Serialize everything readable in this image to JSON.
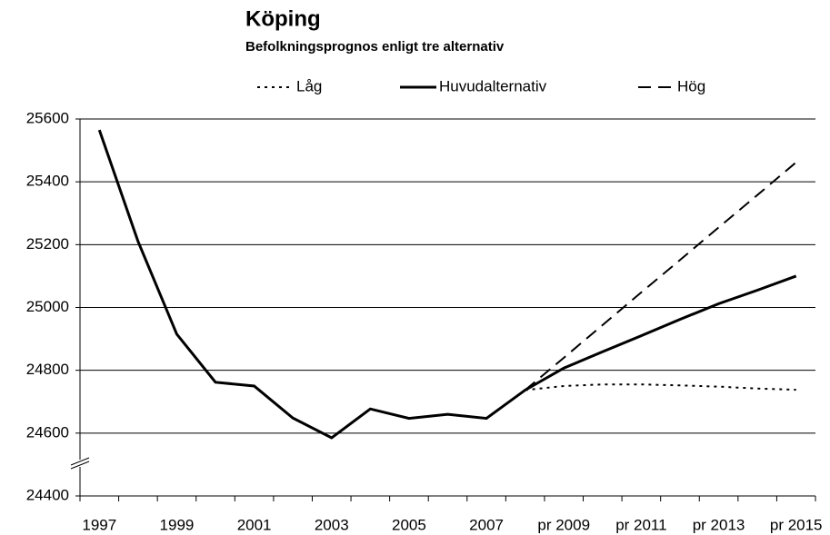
{
  "chart_data": {
    "type": "line",
    "title": "Köping",
    "subtitle": "Befolkningsprognos enligt tre alternativ",
    "categories": [
      "1997",
      null,
      "1999",
      null,
      "2001",
      null,
      "2003",
      null,
      "2005",
      null,
      "2007",
      null,
      "pr 2009",
      null,
      "pr 2011",
      null,
      "pr 2013",
      null,
      "pr 2015"
    ],
    "series": [
      {
        "name": "Låg",
        "color": "#000000",
        "dash": "dotted",
        "values": [
          null,
          null,
          null,
          null,
          null,
          null,
          null,
          null,
          null,
          null,
          null,
          24737,
          24750,
          24755,
          24755,
          24752,
          24748,
          24742,
          24738
        ]
      },
      {
        "name": "Huvudalternativ",
        "color": "#000000",
        "dash": "solid",
        "values": [
          25565,
          25210,
          24915,
          24762,
          24750,
          24648,
          24585,
          24677,
          24647,
          24660,
          24647,
          24737,
          24807,
          24859,
          24910,
          24962,
          25012,
          25055,
          25100
        ]
      },
      {
        "name": "Hög",
        "color": "#000000",
        "dash": "dashed",
        "values": [
          null,
          null,
          null,
          null,
          null,
          null,
          null,
          null,
          null,
          null,
          null,
          24737,
          24840,
          24944,
          25048,
          25151,
          25255,
          25358,
          25462
        ]
      }
    ],
    "ylim": [
      24400,
      25600
    ],
    "yticks": [
      24400,
      24600,
      24800,
      25000,
      25200,
      25400,
      25600
    ],
    "grid": true,
    "legend": "top"
  }
}
